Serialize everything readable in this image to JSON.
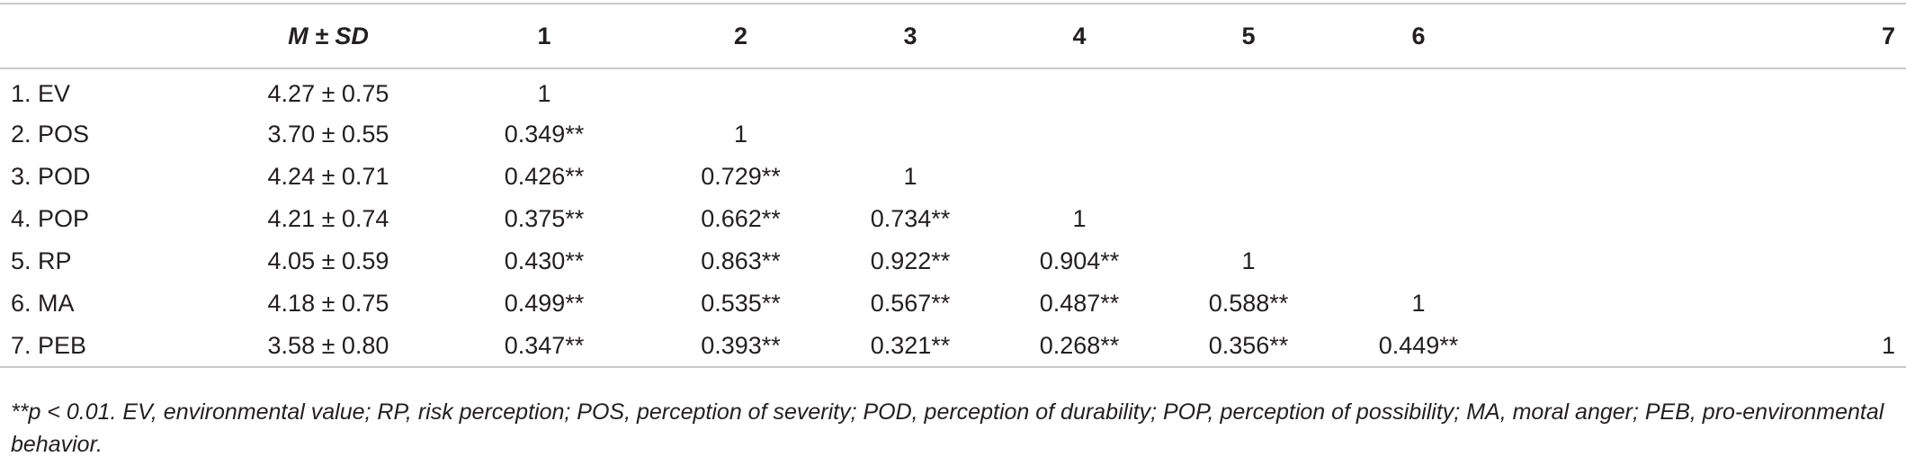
{
  "table": {
    "header": {
      "label": "",
      "msd": "M ± SD",
      "cols": [
        "1",
        "2",
        "3",
        "4",
        "5",
        "6",
        "7"
      ]
    },
    "rows": [
      {
        "label": "1. EV",
        "msd": "4.27 ± 0.75",
        "cells": [
          "1",
          "",
          "",
          "",
          "",
          "",
          ""
        ]
      },
      {
        "label": "2. POS",
        "msd": "3.70 ± 0.55",
        "cells": [
          "0.349**",
          "1",
          "",
          "",
          "",
          "",
          ""
        ]
      },
      {
        "label": "3. POD",
        "msd": "4.24 ± 0.71",
        "cells": [
          "0.426**",
          "0.729**",
          "1",
          "",
          "",
          "",
          ""
        ]
      },
      {
        "label": "4. POP",
        "msd": "4.21 ± 0.74",
        "cells": [
          "0.375**",
          "0.662**",
          "0.734**",
          "1",
          "",
          "",
          ""
        ]
      },
      {
        "label": "5. RP",
        "msd": "4.05 ± 0.59",
        "cells": [
          "0.430**",
          "0.863**",
          "0.922**",
          "0.904**",
          "1",
          "",
          ""
        ]
      },
      {
        "label": "6. MA",
        "msd": "4.18 ± 0.75",
        "cells": [
          "0.499**",
          "0.535**",
          "0.567**",
          "0.487**",
          "0.588**",
          "1",
          ""
        ]
      },
      {
        "label": "7. PEB",
        "msd": "3.58 ± 0.80",
        "cells": [
          "0.347**",
          "0.393**",
          "0.321**",
          "0.268**",
          "0.356**",
          "0.449**",
          "1"
        ]
      }
    ],
    "note": "**p < 0.01. EV, environmental value; RP, risk perception; POS, perception of severity; POD, perception of durability; POP, perception of possibility; MA, moral anger; PEB, pro-environmental behavior."
  },
  "colors": {
    "text": "#231f20",
    "rule": "#c9c9c9",
    "background": "#ffffff"
  }
}
